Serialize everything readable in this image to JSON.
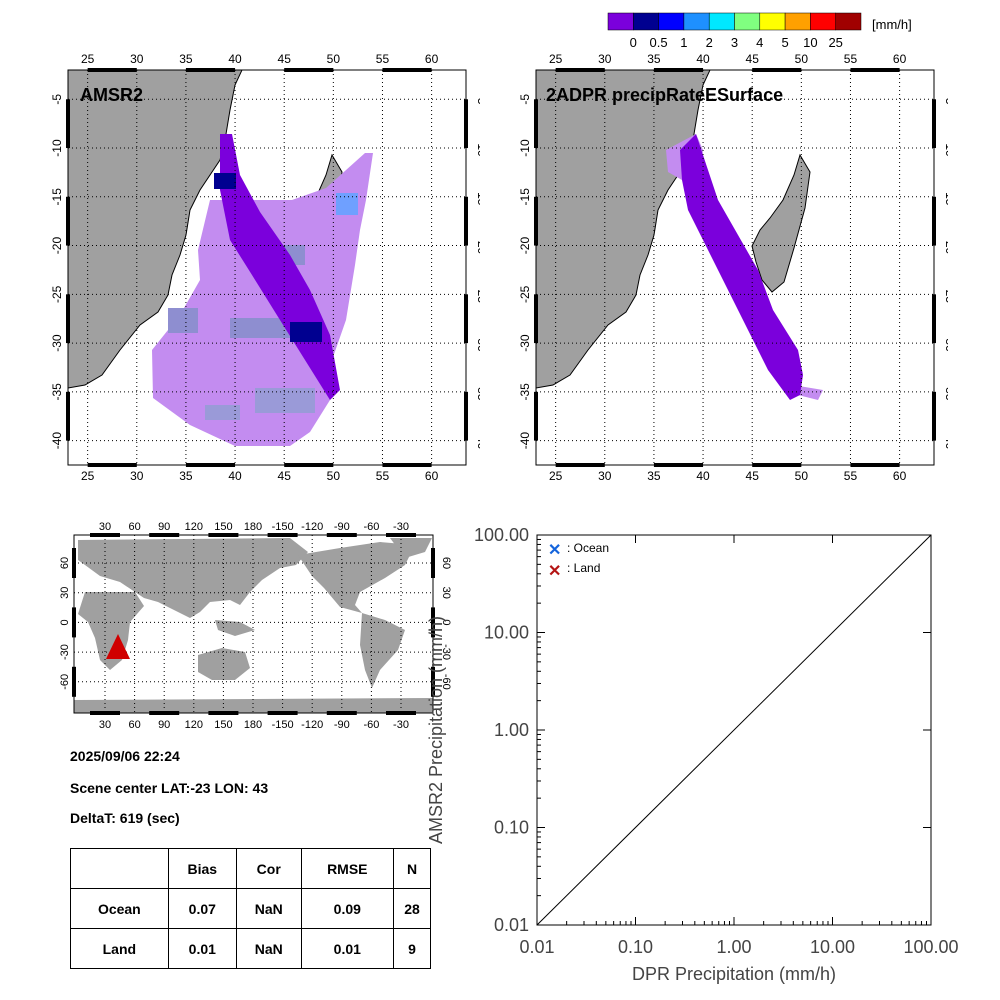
{
  "colorbar": {
    "unit": "[mm/h]",
    "colors": [
      "#7b00dc",
      "#000090",
      "#0000ff",
      "#1e90ff",
      "#00e8ff",
      "#80ff80",
      "#ffff00",
      "#ffa000",
      "#ff0000",
      "#a00000"
    ],
    "tick_labels": [
      "0",
      "0.5",
      "1",
      "2",
      "3",
      "4",
      "5",
      "10",
      "25"
    ]
  },
  "maps": {
    "lon_labels": [
      "25",
      "30",
      "35",
      "40",
      "45",
      "50",
      "55",
      "60"
    ],
    "lat_labels": [
      "-5",
      "-10",
      "-15",
      "-20",
      "-25",
      "-30",
      "-35",
      "-40"
    ],
    "left_title": "AMSR2",
    "right_title": "2ADPR precipRateESurface"
  },
  "globe": {
    "top_lon_labels": [
      "30",
      "60",
      "90",
      "120",
      "150",
      "180",
      "-150",
      "-120",
      "-90",
      "-60",
      "-30"
    ],
    "bottom_lon_labels": [
      "30",
      "60",
      "90",
      "120",
      "150",
      "180",
      "-150",
      "-120",
      "-90",
      "-60",
      "-30"
    ],
    "left_lat_labels": [
      "60",
      "30",
      "0",
      "-30",
      "-60"
    ],
    "right_lat_labels": [
      "60",
      "30",
      "0",
      "-30",
      "-60"
    ],
    "marker_color": "#d00000"
  },
  "info": {
    "datetime": "2025/09/06 22:24",
    "scene_center": "Scene center LAT:-23   LON:  43",
    "delta_t": "DeltaT:  619 (sec)"
  },
  "stats_table": {
    "headers": [
      "",
      "Bias",
      "Cor",
      "RMSE",
      "N"
    ],
    "rows": [
      [
        "Ocean",
        "0.07",
        "NaN",
        "0.09",
        "28"
      ],
      [
        "Land",
        "0.01",
        "NaN",
        "0.01",
        "9"
      ]
    ]
  },
  "chart_data": {
    "type": "scatter",
    "xlabel": "DPR Precipitation (mm/h)",
    "ylabel": "AMSR2 Precipitation (mm/h)",
    "x_scale": "log",
    "y_scale": "log",
    "xlim": [
      0.01,
      100
    ],
    "ylim": [
      0.01,
      100
    ],
    "x_tick_labels": [
      "0.01",
      "0.10",
      "1.00",
      "10.00",
      "100.00"
    ],
    "y_tick_labels": [
      "100.00",
      "10.00",
      "1.00",
      "0.10",
      "0.01"
    ],
    "reference_line": "1:1",
    "legend": [
      {
        "label": ": Ocean",
        "color": "#1464dc"
      },
      {
        "label": ": Land",
        "color": "#b41414"
      }
    ],
    "legend_position": "top-left",
    "series": [
      {
        "name": ": Ocean",
        "points": []
      },
      {
        "name": ": Land",
        "points": []
      }
    ]
  }
}
